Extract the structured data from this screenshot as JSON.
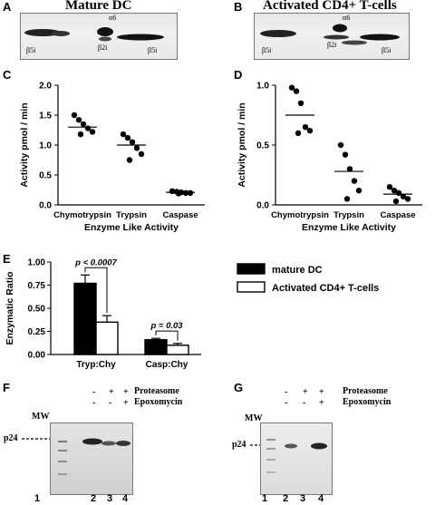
{
  "panels": {
    "A": "A",
    "B": "B",
    "C": "C",
    "D": "D",
    "E": "E",
    "F": "F",
    "G": "G"
  },
  "panelA": {
    "title": "Mature DC",
    "spots": [
      "α6",
      "β2i",
      "β5i",
      "β5i"
    ]
  },
  "panelB": {
    "title": "Activated CD4+ T-cells",
    "spots": [
      "α6",
      "β2i",
      "β5i",
      "β5i"
    ]
  },
  "chart_data": [
    {
      "type": "scatter",
      "panel": "C",
      "categories": [
        "Chymotrypsin",
        "Trypsin",
        "Caspase"
      ],
      "xlabel": "Enzyme Like Activity",
      "ylabel": "Activity pmol / min",
      "ylim": [
        0,
        2.0
      ],
      "yticks": [
        "0.0",
        "0.5",
        "1.0",
        "1.5",
        "2.0"
      ],
      "series": [
        {
          "points": [
            1.5,
            1.42,
            1.35,
            1.28,
            1.22,
            1.18
          ],
          "median": 1.3
        },
        {
          "points": [
            1.18,
            1.12,
            1.05,
            0.95,
            0.85,
            0.75
          ],
          "median": 1.0
        },
        {
          "points": [
            0.23,
            0.22,
            0.21,
            0.2,
            0.2,
            0.19
          ],
          "median": 0.21
        }
      ]
    },
    {
      "type": "scatter",
      "panel": "D",
      "categories": [
        "Chymotrypsin",
        "Trypsin",
        "Caspase"
      ],
      "xlabel": "Enzyme Like Activity",
      "ylabel": "Activity pmol / min",
      "ylim": [
        0,
        1.0
      ],
      "yticks": [
        "0.0",
        "0.5",
        "1.0"
      ],
      "series": [
        {
          "points": [
            0.98,
            0.95,
            0.85,
            0.65,
            0.62,
            0.6
          ],
          "median": 0.75
        },
        {
          "points": [
            0.5,
            0.42,
            0.3,
            0.2,
            0.12,
            0.05
          ],
          "median": 0.28
        },
        {
          "points": [
            0.15,
            0.12,
            0.1,
            0.07,
            0.05,
            0.03
          ],
          "median": 0.09
        }
      ]
    },
    {
      "type": "bar",
      "panel": "E",
      "categories": [
        "Tryp:Chy",
        "Casp:Chy"
      ],
      "ylabel": "Enzymatic Ratio",
      "ylim": [
        0,
        1.0
      ],
      "yticks": [
        "0.00",
        "0.25",
        "0.50",
        "0.75",
        "1.00"
      ],
      "series": [
        {
          "name": "mature DC",
          "values": [
            0.77,
            0.16
          ],
          "errors": [
            0.09,
            0.015
          ],
          "color": "#000000"
        },
        {
          "name": "Activated CD4+ T-cells",
          "values": [
            0.35,
            0.1
          ],
          "errors": [
            0.07,
            0.02
          ],
          "color": "#ffffff"
        }
      ],
      "annotations": [
        "p < 0.0007",
        "p = 0.03"
      ]
    }
  ],
  "panelF": {
    "rows": [
      {
        "label": "Proteasome",
        "signs": [
          "-",
          "+",
          "+"
        ]
      },
      {
        "label": "Epoxomycin",
        "signs": [
          "-",
          "-",
          "+"
        ]
      }
    ],
    "mw": "MW",
    "band": "p24",
    "lanes": [
      "1",
      "2",
      "3",
      "4"
    ]
  },
  "panelG": {
    "rows": [
      {
        "label": "Proteasome",
        "signs": [
          "-",
          "+",
          "+"
        ]
      },
      {
        "label": "Epoxomycin",
        "signs": [
          "-",
          "-",
          "+"
        ]
      }
    ],
    "mw": "MW",
    "band": "p24",
    "lanes": [
      "1",
      "2",
      "3",
      "4"
    ]
  }
}
